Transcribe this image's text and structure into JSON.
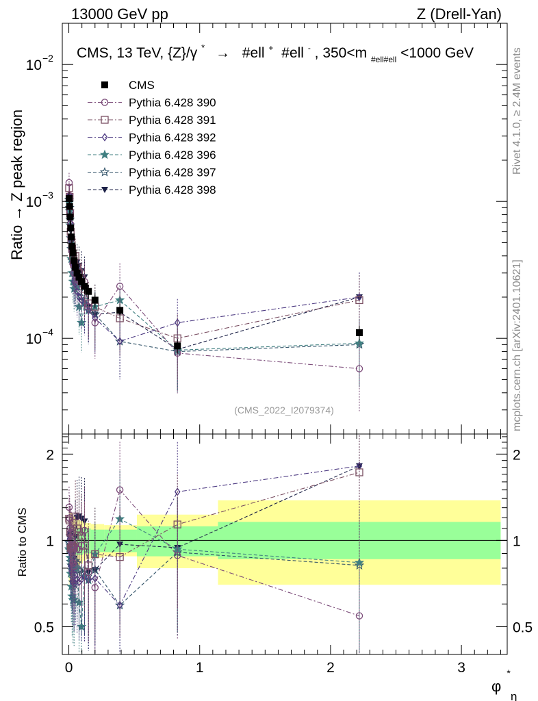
{
  "header": {
    "left": "13000 GeV pp",
    "right": "Z (Drell-Yan)"
  },
  "side_labels": {
    "rivet": "Rivet 4.1.0, ≥ 2.4M events",
    "mcplots": "mcplots.cern.ch [arXiv:2401.10621]"
  },
  "watermark": "(CMS_2022_I2079374)",
  "chart_data": {
    "type": "scatter",
    "title": "CMS, 13 TeV, {Z}/γ* → #ell⁺ #ell⁻, 350<m_{#ell#ell}<1000 GeV",
    "title_parts": {
      "main": "CMS, 13 TeV, {Z}/γ",
      "star": "*",
      "arrow": "→",
      "ell1": "#ell",
      "plus": "+",
      "ell2": "#ell",
      "minus": "-",
      "range_a": ", 350<m",
      "sub": "#ell#ell",
      "range_b": "<1000 GeV"
    },
    "xlabel": "φ",
    "xlabel_sup": "*",
    "xlabel_sub": "η",
    "ylabel": "Ratio → Z peak region",
    "ratio_ylabel": "Ratio to CMS",
    "xlim": [
      -0.05,
      3.35
    ],
    "ylim": [
      2e-05,
      0.02
    ],
    "yscale": "log",
    "ratio_ylim": [
      0.4,
      2.35
    ],
    "ratio_yscale": "log",
    "x_ticks": [
      0,
      1,
      2,
      3
    ],
    "x_tick_labels": [
      "0",
      "1",
      "2",
      "3"
    ],
    "y_ticks": [
      0.0001,
      0.001,
      0.01
    ],
    "y_tick_base": "10",
    "y_tick_exponents": [
      "−4",
      "−3",
      "−2"
    ],
    "ratio_ticks": [
      0.5,
      1,
      2
    ],
    "ratio_tick_labels": [
      "0.5",
      "1",
      "2"
    ],
    "x": [
      0.002,
      0.006,
      0.01,
      0.014,
      0.019,
      0.025,
      0.032,
      0.04,
      0.05,
      0.063,
      0.078,
      0.097,
      0.12,
      0.15,
      0.2,
      0.39,
      0.83,
      2.22
    ],
    "bin_edges": [
      0,
      0.004,
      0.008,
      0.012,
      0.016,
      0.022,
      0.028,
      0.036,
      0.044,
      0.056,
      0.07,
      0.086,
      0.108,
      0.134,
      0.168,
      0.27,
      0.52,
      1.14,
      3.3
    ],
    "data_values": [
      0.00105,
      0.00092,
      0.00077,
      0.00064,
      0.00055,
      0.00047,
      0.00042,
      0.00037,
      0.00033,
      0.0003,
      0.00028,
      0.00026,
      0.00024,
      0.00022,
      0.00019,
      0.00016,
      8.8e-05,
      0.00011
    ],
    "band_inner": [
      [
        0.85,
        1.12
      ],
      [
        0.86,
        1.11
      ],
      [
        0.87,
        1.11
      ],
      [
        0.87,
        1.11
      ],
      [
        0.87,
        1.1
      ],
      [
        0.88,
        1.1
      ],
      [
        0.88,
        1.1
      ],
      [
        0.88,
        1.1
      ],
      [
        0.89,
        1.1
      ],
      [
        0.89,
        1.1
      ],
      [
        0.89,
        1.1
      ],
      [
        0.89,
        1.1
      ],
      [
        0.9,
        1.1
      ],
      [
        0.9,
        1.1
      ],
      [
        0.91,
        1.09
      ],
      [
        0.91,
        1.09
      ],
      [
        0.88,
        1.12
      ],
      [
        0.86,
        1.16
      ]
    ],
    "band_outer": [
      [
        0.7,
        1.3
      ],
      [
        0.72,
        1.28
      ],
      [
        0.73,
        1.27
      ],
      [
        0.74,
        1.26
      ],
      [
        0.75,
        1.25
      ],
      [
        0.77,
        1.23
      ],
      [
        0.78,
        1.22
      ],
      [
        0.79,
        1.21
      ],
      [
        0.8,
        1.2
      ],
      [
        0.81,
        1.19
      ],
      [
        0.82,
        1.18
      ],
      [
        0.83,
        1.17
      ],
      [
        0.85,
        1.16
      ],
      [
        0.86,
        1.15
      ],
      [
        0.87,
        1.14
      ],
      [
        0.88,
        1.13
      ],
      [
        0.8,
        1.23
      ],
      [
        0.7,
        1.38
      ]
    ],
    "series": [
      {
        "name": "CMS",
        "marker": "square-filled",
        "line": "none",
        "color": "#000000",
        "values": [
          0.00105,
          0.00092,
          0.00077,
          0.00064,
          0.00055,
          0.00047,
          0.00042,
          0.00037,
          0.00033,
          0.0003,
          0.00028,
          0.00026,
          0.00024,
          0.00022,
          0.00019,
          0.00016,
          8.8e-05,
          0.00011
        ]
      },
      {
        "name": "Pythia 6.428 390",
        "marker": "circle-open",
        "line": "dashdot",
        "color": "#7a4a78",
        "values": [
          0.00137,
          0.0011,
          0.00085,
          0.00068,
          0.00055,
          0.00043,
          0.00035,
          0.0003,
          0.00032,
          0.00028,
          0.00026,
          0.00025,
          0.00026,
          0.00017,
          0.00013,
          0.00024,
          7.8e-05,
          6e-05
        ]
      },
      {
        "name": "Pythia 6.428 391",
        "marker": "square-open",
        "line": "dashdot",
        "color": "#7a4f62",
        "values": [
          0.00125,
          0.00108,
          0.00082,
          0.0006,
          0.00052,
          0.00045,
          0.0004,
          0.00035,
          0.0004,
          0.00033,
          0.0003,
          0.00027,
          0.00023,
          0.00018,
          0.00017,
          0.00014,
          0.0001,
          0.00019
        ]
      },
      {
        "name": "Pythia 6.428 392",
        "marker": "diamond-open",
        "line": "dashdot",
        "color": "#4d3a82",
        "values": [
          0.0011,
          0.00093,
          0.0007,
          0.00052,
          0.00043,
          0.00036,
          0.0003,
          0.00026,
          0.00025,
          0.00022,
          0.0002,
          0.00019,
          0.00018,
          0.00016,
          0.00014,
          9.5e-05,
          0.00013,
          0.0002
        ]
      },
      {
        "name": "Pythia 6.428 396",
        "marker": "star-filled",
        "line": "dashed",
        "color": "#3f7f80",
        "values": [
          0.00098,
          0.00085,
          0.00067,
          0.00049,
          0.00038,
          0.0003,
          0.00026,
          0.00023,
          0.00026,
          0.00024,
          0.00017,
          0.00013,
          0.00018,
          0.00016,
          0.00017,
          0.00019,
          8.2e-05,
          9.2e-05
        ]
      },
      {
        "name": "Pythia 6.428 397",
        "marker": "star-open",
        "line": "dashed",
        "color": "#2e5066",
        "values": [
          0.00103,
          0.0009,
          0.00074,
          0.00054,
          0.00045,
          0.00037,
          0.0003,
          0.00026,
          0.00028,
          0.00025,
          0.00022,
          0.0002,
          0.00019,
          0.00016,
          0.00015,
          9.5e-05,
          8e-05,
          9e-05
        ]
      },
      {
        "name": "Pythia 6.428 398",
        "marker": "triangle-down-filled",
        "line": "dashed",
        "color": "#1c2147",
        "values": [
          0.00108,
          0.00097,
          0.0008,
          0.00061,
          0.0005,
          0.00042,
          0.00036,
          0.00032,
          0.00034,
          0.00036,
          0.00034,
          0.00031,
          0.00028,
          0.00017,
          0.00015,
          0.000155,
          8.3e-05,
          0.0002
        ]
      }
    ]
  },
  "colors": {
    "band_inner": "#99ff99",
    "band_outer": "#ffff99",
    "frame": "#000000"
  }
}
